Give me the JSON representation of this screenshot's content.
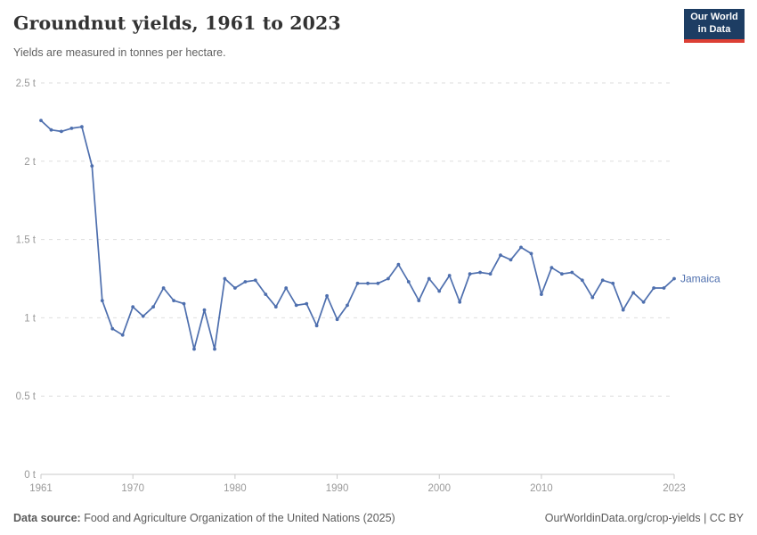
{
  "header": {
    "title": "Groundnut yields, 1961 to 2023",
    "subtitle": "Yields are measured in tonnes per hectare.",
    "logo_line1": "Our World",
    "logo_line2": "in Data"
  },
  "footer": {
    "source_label": "Data source:",
    "source_text": " Food and Agriculture Organization of the United Nations (2025)",
    "link_text": "OurWorldinData.org/crop-yields | CC BY"
  },
  "colors": {
    "series_blue": "#4e6fae",
    "logo_background": "#1d3d63",
    "logo_underline": "#dc3f34",
    "grid": "#dedede",
    "axis": "#c8c8c8",
    "tick_text": "#999999"
  },
  "chart_data": {
    "type": "line",
    "title": "Groundnut yields, 1961 to 2023",
    "subtitle": "Yields are measured in tonnes per hectare.",
    "unit": "tonnes per hectare",
    "xlim": [
      1961,
      2023
    ],
    "ylim": [
      0,
      2.5
    ],
    "xticks": [
      1961,
      1970,
      1980,
      1990,
      2000,
      2010,
      2023
    ],
    "yticks": [
      0,
      0.5,
      1,
      1.5,
      2,
      2.5
    ],
    "ytick_labels": [
      "0 t",
      "0.5 t",
      "1 t",
      "1.5 t",
      "2 t",
      "2.5 t"
    ],
    "grid": "horizontal-dashed",
    "legend_position": "end-of-line-label",
    "series": [
      {
        "name": "Jamaica",
        "color": "#4e6fae",
        "x": [
          1961,
          1962,
          1963,
          1964,
          1965,
          1966,
          1967,
          1968,
          1969,
          1970,
          1971,
          1972,
          1973,
          1974,
          1975,
          1976,
          1977,
          1978,
          1979,
          1980,
          1981,
          1982,
          1983,
          1984,
          1985,
          1986,
          1987,
          1988,
          1989,
          1990,
          1991,
          1992,
          1993,
          1994,
          1995,
          1996,
          1997,
          1998,
          1999,
          2000,
          2001,
          2002,
          2003,
          2004,
          2005,
          2006,
          2007,
          2008,
          2009,
          2010,
          2011,
          2012,
          2013,
          2014,
          2015,
          2016,
          2017,
          2018,
          2019,
          2020,
          2021,
          2022,
          2023
        ],
        "values": [
          2.26,
          2.2,
          2.19,
          2.21,
          2.22,
          1.97,
          1.11,
          0.93,
          0.89,
          1.07,
          1.01,
          1.07,
          1.19,
          1.11,
          1.09,
          0.8,
          1.05,
          0.8,
          1.25,
          1.19,
          1.23,
          1.24,
          1.15,
          1.07,
          1.19,
          1.08,
          1.09,
          0.95,
          1.14,
          0.99,
          1.08,
          1.22,
          1.22,
          1.22,
          1.25,
          1.34,
          1.23,
          1.11,
          1.25,
          1.17,
          1.27,
          1.1,
          1.28,
          1.29,
          1.28,
          1.4,
          1.37,
          1.45,
          1.41,
          1.15,
          1.32,
          1.28,
          1.29,
          1.24,
          1.13,
          1.24,
          1.22,
          1.05,
          1.16,
          1.1,
          1.19,
          1.19,
          1.25
        ]
      }
    ]
  }
}
